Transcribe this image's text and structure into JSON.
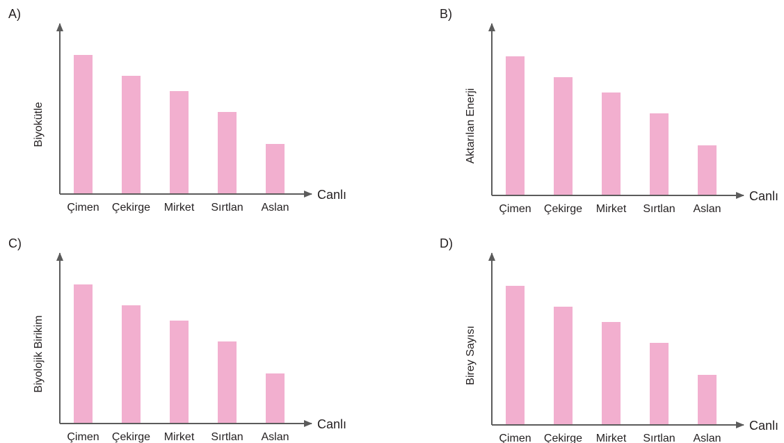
{
  "colors": {
    "bar": "#f2afcf",
    "axis": "#5b5b5b",
    "text": "#231f20"
  },
  "chart_data": [
    {
      "type": "bar",
      "panel_label": "A)",
      "ylabel": "Biyokütle",
      "xlabel": "Canlı",
      "categories": [
        "Çimen",
        "Çekirge",
        "Mirket",
        "Sırtlan",
        "Aslan"
      ],
      "values": [
        100,
        85,
        74,
        59,
        36
      ],
      "ylim": [
        0,
        100
      ],
      "grid": false
    },
    {
      "type": "bar",
      "panel_label": "B)",
      "ylabel": "Aktarılan Enerji",
      "xlabel": "Canlı",
      "categories": [
        "Çimen",
        "Çekirge",
        "Mirket",
        "Sırtlan",
        "Aslan"
      ],
      "values": [
        100,
        85,
        74,
        59,
        36
      ],
      "ylim": [
        0,
        100
      ],
      "grid": false
    },
    {
      "type": "bar",
      "panel_label": "C)",
      "ylabel": "Biyolojik Birikim",
      "xlabel": "Canlı",
      "categories": [
        "Çimen",
        "Çekirge",
        "Mirket",
        "Sırtlan",
        "Aslan"
      ],
      "values": [
        100,
        85,
        74,
        59,
        36
      ],
      "ylim": [
        0,
        100
      ],
      "grid": false
    },
    {
      "type": "bar",
      "panel_label": "D)",
      "ylabel": "Birey Sayısı",
      "xlabel": "Canlı",
      "categories": [
        "Çimen",
        "Çekirge",
        "Mirket",
        "Sırtlan",
        "Aslan"
      ],
      "values": [
        100,
        85,
        74,
        59,
        36
      ],
      "ylim": [
        0,
        100
      ],
      "grid": false
    }
  ]
}
